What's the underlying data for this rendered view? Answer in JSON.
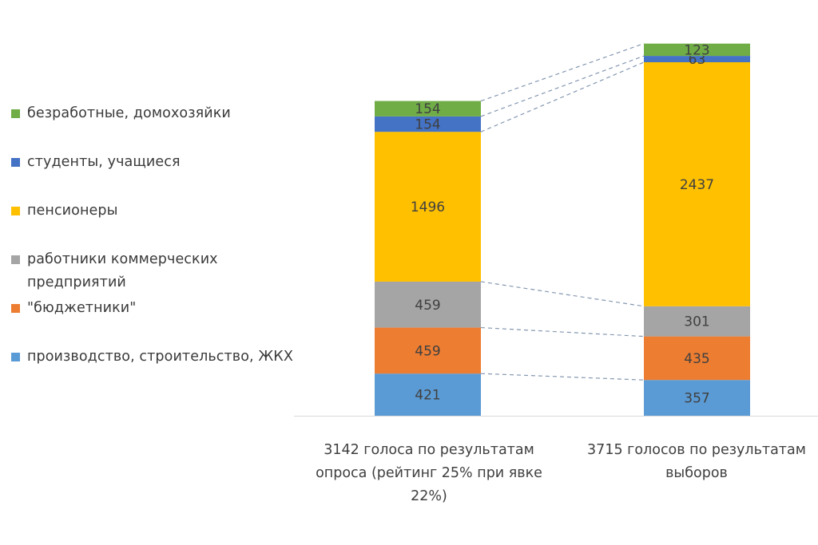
{
  "chart_data": {
    "type": "bar",
    "stacked": true,
    "categories": [
      "3142 голоса по результатам опроса (рейтинг 25% при явке 22%)",
      "3715 голосов по результатам выборов"
    ],
    "series": [
      {
        "name": "производство, строительство, ЖКХ",
        "color": "#5b9bd5",
        "values": [
          421,
          357
        ]
      },
      {
        "name": "\"бюджетники\"",
        "color": "#ed7d31",
        "values": [
          459,
          435
        ]
      },
      {
        "name": "работники коммерческих предприятий",
        "color": "#a5a5a5",
        "values": [
          459,
          301
        ]
      },
      {
        "name": "пенсионеры",
        "color": "#ffc000",
        "values": [
          1496,
          2437
        ]
      },
      {
        "name": "студенты, учащиеся",
        "color": "#4472c4",
        "values": [
          154,
          63
        ]
      },
      {
        "name": "безработные, домохозяйки",
        "color": "#70ad47",
        "values": [
          154,
          123
        ]
      }
    ],
    "legend_order": [
      5,
      4,
      3,
      2,
      1,
      0
    ],
    "legend_position": "left",
    "series_lines": true,
    "title": "",
    "xlabel": "",
    "ylabel": ""
  }
}
